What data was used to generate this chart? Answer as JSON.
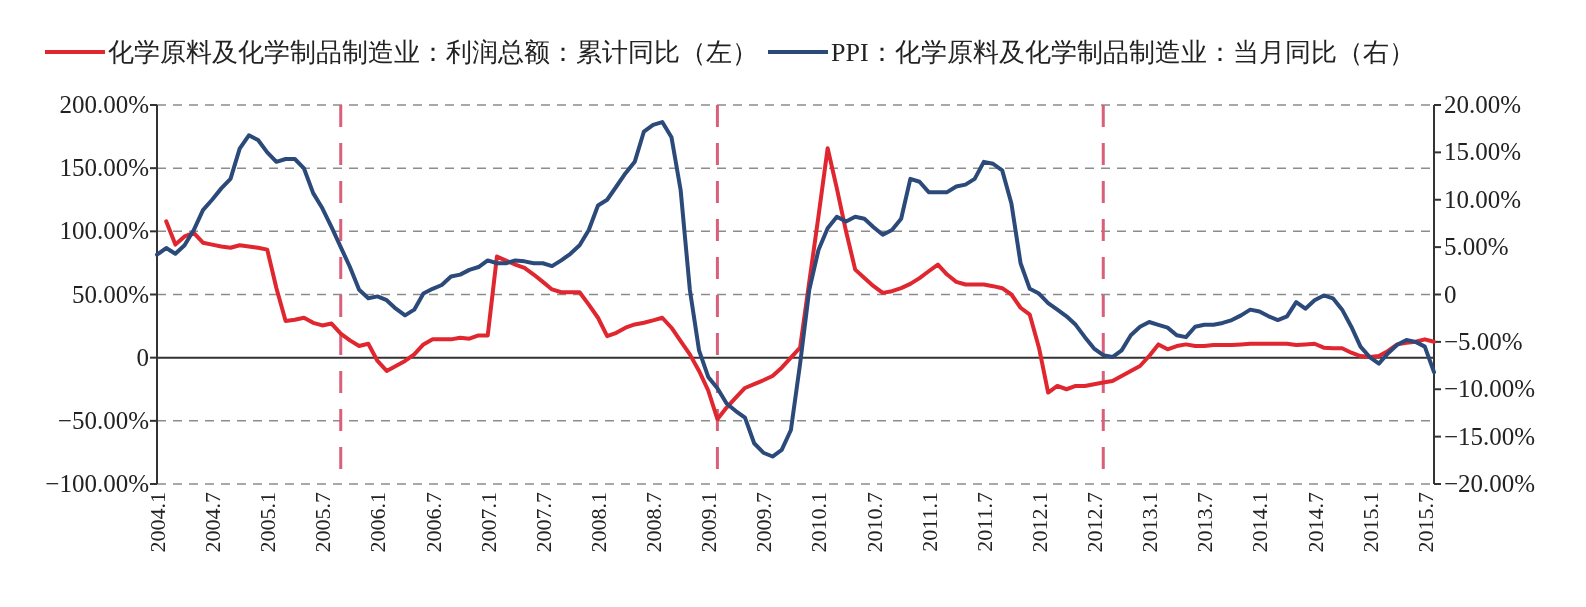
{
  "chart_data": {
    "type": "line",
    "x": [
      "2004-01",
      "2004-02",
      "2004-03",
      "2004-04",
      "2004-05",
      "2004-06",
      "2004-07",
      "2004-08",
      "2004-09",
      "2004-10",
      "2004-11",
      "2004-12",
      "2005-01",
      "2005-02",
      "2005-03",
      "2005-04",
      "2005-05",
      "2005-06",
      "2005-07",
      "2005-08",
      "2005-09",
      "2005-10",
      "2005-11",
      "2005-12",
      "2006-01",
      "2006-02",
      "2006-03",
      "2006-04",
      "2006-05",
      "2006-06",
      "2006-07",
      "2006-08",
      "2006-09",
      "2006-10",
      "2006-11",
      "2006-12",
      "2007-01",
      "2007-02",
      "2007-03",
      "2007-04",
      "2007-05",
      "2007-06",
      "2007-07",
      "2007-08",
      "2007-09",
      "2007-10",
      "2007-11",
      "2007-12",
      "2008-01",
      "2008-02",
      "2008-03",
      "2008-04",
      "2008-05",
      "2008-06",
      "2008-07",
      "2008-08",
      "2008-09",
      "2008-10",
      "2008-11",
      "2008-12",
      "2009-01",
      "2009-02",
      "2009-03",
      "2009-04",
      "2009-05",
      "2009-06",
      "2009-07",
      "2009-08",
      "2009-09",
      "2009-10",
      "2009-11",
      "2009-12",
      "2010-01",
      "2010-02",
      "2010-03",
      "2010-04",
      "2010-05",
      "2010-06",
      "2010-07",
      "2010-08",
      "2010-09",
      "2010-10",
      "2010-11",
      "2010-12",
      "2011-01",
      "2011-02",
      "2011-03",
      "2011-04",
      "2011-05",
      "2011-06",
      "2011-07",
      "2011-08",
      "2011-09",
      "2011-10",
      "2011-11",
      "2011-12",
      "2012-01",
      "2012-02",
      "2012-03",
      "2012-04",
      "2012-05",
      "2012-06",
      "2012-07",
      "2012-08",
      "2012-09",
      "2012-10",
      "2012-11",
      "2012-12",
      "2013-01",
      "2013-02",
      "2013-03",
      "2013-04",
      "2013-05",
      "2013-06",
      "2013-07",
      "2013-08",
      "2013-09",
      "2013-10",
      "2013-11",
      "2013-12",
      "2014-01",
      "2014-02",
      "2014-03",
      "2014-04",
      "2014-05",
      "2014-06",
      "2014-07",
      "2014-08",
      "2014-09",
      "2014-10",
      "2014-11",
      "2014-12",
      "2015-01",
      "2015-02",
      "2015-03",
      "2015-04",
      "2015-05",
      "2015-06",
      "2015-07",
      "2015-08"
    ],
    "series": [
      {
        "name": "化学原料及化学制品制造业：利润总额：累计同比（左）",
        "color": "#e0262f",
        "values": [
          null,
          107.9,
          89.5,
          96,
          98.7,
          91,
          89.5,
          88,
          87,
          89,
          88,
          87,
          85.5,
          55,
          29,
          30,
          31.6,
          27.6,
          25.5,
          27,
          19,
          13.7,
          9.2,
          11,
          -2.6,
          -10.5,
          -6.6,
          -2.6,
          2.6,
          10.5,
          14.5,
          14.5,
          14.5,
          15.8,
          15,
          17.6,
          17.6,
          80,
          76.8,
          73.7,
          71,
          65.8,
          60,
          54,
          51.8,
          51.8,
          51.8,
          42,
          31.6,
          17,
          19.7,
          23.7,
          26.3,
          27.6,
          29.5,
          31.6,
          23.7,
          13,
          2.6,
          -10.5,
          -26,
          -48.7,
          -39.5,
          -31.6,
          -24,
          -21,
          -17.9,
          -14.5,
          -7.9,
          0,
          7.9,
          60,
          112,
          165.8,
          134,
          100,
          69.7,
          63,
          56.6,
          51.3,
          52.6,
          55,
          58.4,
          63,
          68.4,
          73.7,
          65.8,
          60,
          57.9,
          57.9,
          57.9,
          56.6,
          55,
          50,
          39.5,
          34,
          7.9,
          -27.6,
          -22.4,
          -25,
          -22.4,
          -22.4,
          -21,
          -19.7,
          -18.4,
          -14.5,
          -10.5,
          -6.6,
          1.3,
          10.5,
          6.6,
          9.2,
          10.5,
          9.2,
          9.2,
          10,
          10,
          10,
          10.5,
          11,
          11,
          11,
          11,
          11,
          10,
          10.5,
          11,
          7.9,
          7.4,
          7.4,
          3.9,
          1.3,
          0.5,
          1.3,
          5.3,
          10.5,
          11.8,
          12.6,
          14.5,
          12.6
        ]
      },
      {
        "name": "PPI：化学原料及化学制品制造业：当月同比（右）",
        "color": "#2b4a7a",
        "axis": "y2",
        "values": [
          4.2,
          4.9,
          4.3,
          5.2,
          6.8,
          8.9,
          10,
          11.2,
          12.2,
          15.4,
          16.8,
          16.3,
          15,
          14,
          14.3,
          14.3,
          13.3,
          10.7,
          9.1,
          7.1,
          5,
          2.9,
          0.5,
          -0.4,
          -0.2,
          -0.6,
          -1.5,
          -2.2,
          -1.6,
          0.1,
          0.6,
          1,
          1.9,
          2.1,
          2.6,
          2.9,
          3.6,
          3.3,
          3.3,
          3.6,
          3.5,
          3.3,
          3.3,
          3,
          3.6,
          4.3,
          5.2,
          6.8,
          9.4,
          10,
          11.4,
          12.8,
          14,
          17.2,
          17.9,
          18.2,
          16.6,
          11,
          0.5,
          -5.9,
          -8.7,
          -9.9,
          -11.5,
          -12.3,
          -13,
          -15.7,
          -16.7,
          -17.1,
          -16.4,
          -14.3,
          -7.3,
          0.5,
          4.7,
          7,
          8.2,
          7.7,
          8.2,
          8,
          7.1,
          6.3,
          6.8,
          8,
          12.2,
          11.9,
          10.8,
          10.8,
          10.8,
          11.4,
          11.6,
          12.2,
          14,
          13.8,
          13.1,
          9.6,
          3.3,
          0.6,
          0.1,
          -0.9,
          -1.6,
          -2.3,
          -3.2,
          -4.5,
          -5.7,
          -6.4,
          -6.6,
          -5.9,
          -4.3,
          -3.4,
          -2.9,
          -3.2,
          -3.5,
          -4.3,
          -4.5,
          -3.4,
          -3.2,
          -3.2,
          -3,
          -2.7,
          -2.2,
          -1.6,
          -1.8,
          -2.3,
          -2.7,
          -2.3,
          -0.8,
          -1.5,
          -0.6,
          -0.1,
          -0.4,
          -1.6,
          -3.4,
          -5.5,
          -6.6,
          -7.3,
          -6.2,
          -5.3,
          -4.8,
          -5,
          -5.5,
          -8.2
        ]
      }
    ],
    "xlim": [
      "2004-01",
      "2015-08"
    ],
    "xticks": [
      {
        "value": "2004-01",
        "label": "2004.1"
      },
      {
        "value": "2004-07",
        "label": "2004.7"
      },
      {
        "value": "2005-01",
        "label": "2005.1"
      },
      {
        "value": "2005-07",
        "label": "2005.7"
      },
      {
        "value": "2006-01",
        "label": "2006.1"
      },
      {
        "value": "2006-07",
        "label": "2006.7"
      },
      {
        "value": "2007-01",
        "label": "2007.1"
      },
      {
        "value": "2007-07",
        "label": "2007.7"
      },
      {
        "value": "2008-01",
        "label": "2008.1"
      },
      {
        "value": "2008-07",
        "label": "2008.7"
      },
      {
        "value": "2009-01",
        "label": "2009.1"
      },
      {
        "value": "2009-07",
        "label": "2009.7"
      },
      {
        "value": "2010-01",
        "label": "2010.1"
      },
      {
        "value": "2010-07",
        "label": "2010.7"
      },
      {
        "value": "2011-01",
        "label": "2011.1"
      },
      {
        "value": "2011-07",
        "label": "2011.7"
      },
      {
        "value": "2012-01",
        "label": "2012.1"
      },
      {
        "value": "2012-07",
        "label": "2012.7"
      },
      {
        "value": "2013-01",
        "label": "2013.1"
      },
      {
        "value": "2013-07",
        "label": "2013.7"
      },
      {
        "value": "2014-01",
        "label": "2014.1"
      },
      {
        "value": "2014-07",
        "label": "2014.7"
      },
      {
        "value": "2015-01",
        "label": "2015.1"
      },
      {
        "value": "2015-07",
        "label": "2015.7"
      }
    ],
    "ylim": [
      -100,
      200
    ],
    "yticks": [
      {
        "value": -100,
        "label": "−100.00%"
      },
      {
        "value": -50,
        "label": "−50.00%"
      },
      {
        "value": 0,
        "label": "0"
      },
      {
        "value": 50,
        "label": "50.00%"
      },
      {
        "value": 100,
        "label": "100.00%"
      },
      {
        "value": 150,
        "label": "150.00%"
      },
      {
        "value": 200,
        "label": "200.00%"
      }
    ],
    "y2lim": [
      -20,
      20
    ],
    "y2ticks": [
      {
        "value": -20,
        "label": "−20.00%"
      },
      {
        "value": -15,
        "label": "−15.00%"
      },
      {
        "value": -10,
        "label": "−10.00%"
      },
      {
        "value": -5,
        "label": "−5.00%"
      },
      {
        "value": 0,
        "label": "0"
      },
      {
        "value": 5,
        "label": "5.00%"
      },
      {
        "value": 10,
        "label": "10.00%"
      },
      {
        "value": 15,
        "label": "15.00%"
      },
      {
        "value": 20,
        "label": "20.00%"
      }
    ],
    "ref_lines": [
      {
        "axis": "x",
        "value": "2005-09",
        "color": "#d9607a",
        "line_style": "dashed"
      },
      {
        "axis": "x",
        "value": "2009-02",
        "color": "#d9607a",
        "line_style": "dashed"
      },
      {
        "axis": "x",
        "value": "2012-08",
        "color": "#d9607a",
        "line_style": "dashed"
      }
    ],
    "grid": "y",
    "legend": "top"
  }
}
